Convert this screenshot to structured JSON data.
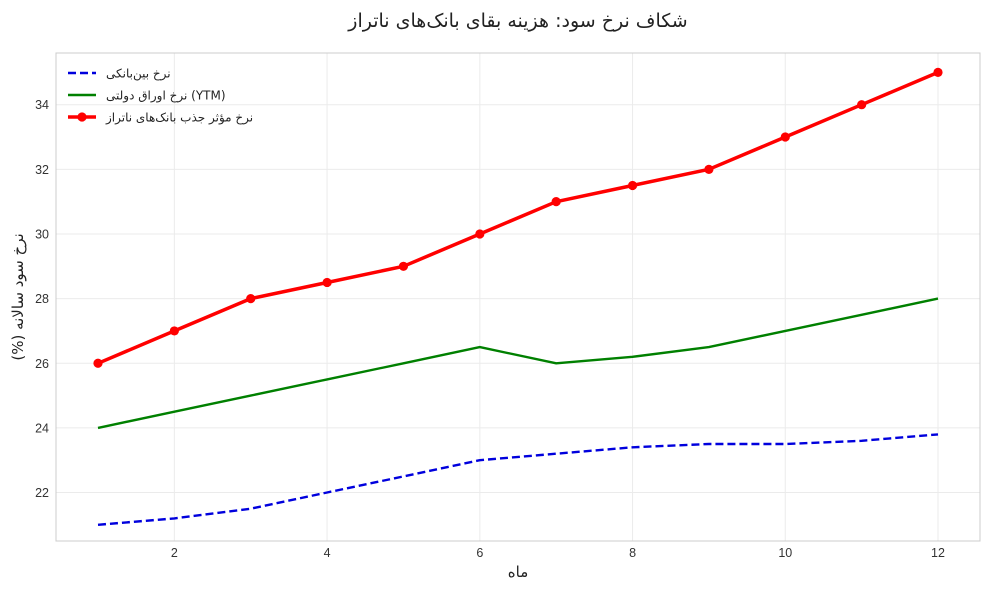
{
  "chart_data": {
    "type": "line",
    "title": "شکاف نرخ سود: هزینه بقای بانک‌های ناتراز",
    "xlabel": "ماه",
    "ylabel": "نرخ سود سالانه (%)",
    "x": [
      1,
      2,
      3,
      4,
      5,
      6,
      7,
      8,
      9,
      10,
      11,
      12
    ],
    "xlim": [
      0.45,
      12.55
    ],
    "ylim": [
      20.5,
      35.6
    ],
    "xticks": [
      2,
      4,
      6,
      8,
      10,
      12
    ],
    "yticks": [
      22,
      24,
      26,
      28,
      30,
      32,
      34
    ],
    "grid": true,
    "legend_position": "top-left",
    "series": [
      {
        "name": "نرخ بین‌بانکی",
        "values": [
          21.0,
          21.2,
          21.5,
          22.0,
          22.5,
          23.0,
          23.2,
          23.4,
          23.5,
          23.5,
          23.6,
          23.8
        ],
        "color": "#0000dd",
        "style": "dashed",
        "markers": false
      },
      {
        "name": "نرخ اوراق دولتی (YTM)",
        "values": [
          24.0,
          24.5,
          25.0,
          25.5,
          26.0,
          26.5,
          26.0,
          26.2,
          26.5,
          27.0,
          27.5,
          28.0
        ],
        "color": "#008000",
        "style": "solid",
        "markers": false
      },
      {
        "name": "نرخ مؤثر جذب بانک‌های ناتراز",
        "values": [
          26.0,
          27.0,
          28.0,
          28.5,
          29.0,
          30.0,
          31.0,
          31.5,
          32.0,
          33.0,
          34.0,
          35.0
        ],
        "color": "#ff0000",
        "style": "solid",
        "markers": true
      }
    ]
  }
}
